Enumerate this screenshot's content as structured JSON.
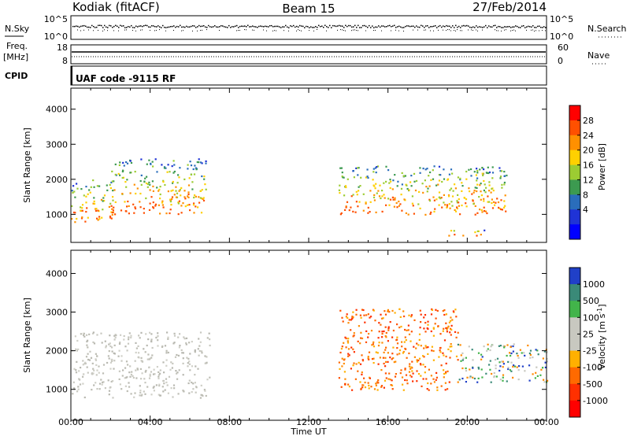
{
  "header": {
    "station": "Kodiak (fitACF)",
    "beam": "Beam 15",
    "date": "27/Feb/2014"
  },
  "params": {
    "nsky_label": "N.Sky",
    "nsky_ticks": [
      "10^5",
      "10^0"
    ],
    "nsearch_label": "N.Search",
    "nsearch_ticks": [
      "10^5",
      "10^0"
    ],
    "freq_label": "Freq.",
    "freq_unit": "[MHz]",
    "freq_ticks": [
      "18",
      "8"
    ],
    "nave_label": "Nave",
    "nave_ticks": [
      "60",
      "0"
    ],
    "cpid_label": "CPID",
    "cpid_value": "UAF code -9115 RF"
  },
  "chart_data": [
    {
      "type": "heatmap",
      "name": "power-panel",
      "ylabel": "Slant Range [km]",
      "xlabel": "",
      "ylim": [
        200,
        4600
      ],
      "yticks": [
        "1000",
        "2000",
        "3000",
        "4000"
      ],
      "xlim_hours": [
        0,
        24
      ],
      "colorbar": {
        "label": "Power [dB]",
        "ticks": [
          "28",
          "24",
          "20",
          "16",
          "12",
          "8",
          "4"
        ],
        "colors": [
          "#ff0000",
          "#ff5000",
          "#ff9000",
          "#ffd000",
          "#9ccc32",
          "#3c9a50",
          "#2a6dbb",
          "#1f33d6",
          "#0000ff"
        ]
      },
      "echo_regions": [
        {
          "t0": 0.0,
          "t1": 2.2,
          "r0": 800,
          "r1": 2000,
          "level": "mixed"
        },
        {
          "t0": 2.0,
          "t1": 6.8,
          "r0": 1000,
          "r1": 2600,
          "level": "mixed"
        },
        {
          "t0": 13.5,
          "t1": 22.0,
          "r0": 1000,
          "r1": 2400,
          "level": "mixed"
        },
        {
          "t0": 19.0,
          "t1": 21.0,
          "r0": 400,
          "r1": 600,
          "level": "medium"
        }
      ]
    },
    {
      "type": "heatmap",
      "name": "velocity-panel",
      "ylabel": "Slant Range [km]",
      "xlabel": "Time UT",
      "ylim": [
        200,
        4600
      ],
      "yticks": [
        "1000",
        "2000",
        "3000",
        "4000"
      ],
      "xticks": [
        "00:00",
        "04:00",
        "08:00",
        "12:00",
        "16:00",
        "20:00",
        "00:00"
      ],
      "xlim_hours": [
        0,
        24
      ],
      "colorbar": {
        "label": "Velocity [m s",
        "label_exp": "-1",
        "label_close": "]",
        "ticks": [
          "1000",
          "500",
          "100",
          "25",
          "-25",
          "-100",
          "-500",
          "-1000"
        ],
        "colors": [
          "#2040c8",
          "#3a8a78",
          "#42b44a",
          "#c8c8c0",
          "#c8c8c0",
          "#ffb000",
          "#ff6a00",
          "#ff3000",
          "#ff0000"
        ]
      },
      "echo_regions": [
        {
          "t0": 0.0,
          "t1": 7.0,
          "r0": 800,
          "r1": 2500,
          "level": "ground-scatter"
        },
        {
          "t0": 13.5,
          "t1": 19.5,
          "r0": 1000,
          "r1": 3100,
          "level": "negative"
        },
        {
          "t0": 19.5,
          "t1": 24.0,
          "r0": 1200,
          "r1": 2200,
          "level": "mixed"
        }
      ]
    }
  ]
}
